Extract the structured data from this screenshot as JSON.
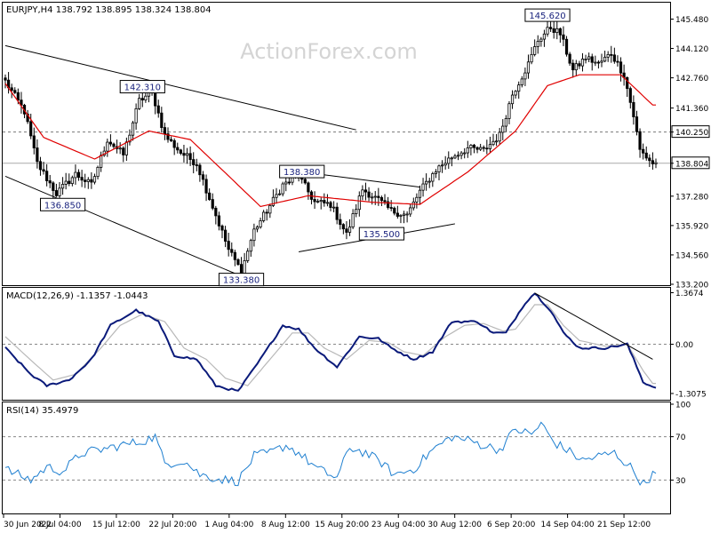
{
  "watermark": "ActionForex.com",
  "colors": {
    "candle": "#000000",
    "ma": "#e00000",
    "macd": "#0a1a7a",
    "macd_signal": "#b8b8b8",
    "rsi": "#1e7fd0",
    "trendline": "#000000",
    "label_box": "#000000",
    "label_text": "#1a237e",
    "grid": "#999999",
    "watermark": "#d4d4d4"
  },
  "chart_data": [
    {
      "type": "candlestick",
      "header": "EURJPY,H4  138.792 138.895 138.324 138.804",
      "ylim": [
        133.2,
        146.2
      ],
      "y_ticks": [
        "145.480",
        "144.120",
        "142.760",
        "141.360",
        "140.250",
        "138.804",
        "137.280",
        "135.920",
        "134.560",
        "133.200"
      ],
      "current_price": "138.804",
      "horizontal_level": "140.250",
      "x_ticks": [
        "30 Jun 2022",
        "8 Jul 04:00",
        "15 Jul 12:00",
        "22 Jul 20:00",
        "1 Aug 04:00",
        "8 Aug 12:00",
        "15 Aug 20:00",
        "23 Aug 04:00",
        "30 Aug 12:00",
        "6 Sep 20:00",
        "14 Sep 04:00",
        "21 Sep 12:00"
      ],
      "annotations": [
        {
          "text": "142.310",
          "bar": 43,
          "value": 142.31
        },
        {
          "text": "136.850",
          "bar": 18,
          "value": 136.85
        },
        {
          "text": "133.380",
          "bar": 74,
          "value": 133.38
        },
        {
          "text": "138.380",
          "bar": 93,
          "value": 138.38
        },
        {
          "text": "135.500",
          "bar": 118,
          "value": 135.5
        },
        {
          "text": "145.620",
          "bar": 170,
          "value": 145.62
        }
      ],
      "anchors": [
        [
          0,
          142.6
        ],
        [
          6,
          141.2
        ],
        [
          10,
          138.8
        ],
        [
          16,
          137.4
        ],
        [
          22,
          138.3
        ],
        [
          27,
          137.8
        ],
        [
          32,
          139.9
        ],
        [
          37,
          139.2
        ],
        [
          42,
          141.7
        ],
        [
          46,
          142.1
        ],
        [
          50,
          140.1
        ],
        [
          55,
          139.3
        ],
        [
          60,
          138.8
        ],
        [
          65,
          136.8
        ],
        [
          70,
          134.8
        ],
        [
          74,
          133.8
        ],
        [
          78,
          135.7
        ],
        [
          82,
          136.6
        ],
        [
          87,
          137.8
        ],
        [
          92,
          138.2
        ],
        [
          97,
          137.0
        ],
        [
          102,
          136.9
        ],
        [
          107,
          135.5
        ],
        [
          112,
          137.6
        ],
        [
          117,
          137.1
        ],
        [
          121,
          136.6
        ],
        [
          126,
          136.4
        ],
        [
          130,
          137.5
        ],
        [
          135,
          138.5
        ],
        [
          140,
          139.1
        ],
        [
          145,
          139.5
        ],
        [
          150,
          139.4
        ],
        [
          155,
          140.1
        ],
        [
          159,
          142.0
        ],
        [
          164,
          143.4
        ],
        [
          167,
          144.5
        ],
        [
          171,
          145.1
        ],
        [
          174,
          144.8
        ],
        [
          178,
          143.1
        ],
        [
          182,
          143.7
        ],
        [
          186,
          143.4
        ],
        [
          190,
          143.9
        ],
        [
          194,
          142.9
        ],
        [
          197,
          141.0
        ],
        [
          199,
          139.4
        ],
        [
          203,
          138.8
        ]
      ],
      "ma_anchors": [
        [
          0,
          142.5
        ],
        [
          12,
          140.0
        ],
        [
          28,
          139.0
        ],
        [
          45,
          140.3
        ],
        [
          58,
          139.9
        ],
        [
          68,
          138.5
        ],
        [
          80,
          136.8
        ],
        [
          95,
          137.3
        ],
        [
          115,
          137.0
        ],
        [
          130,
          136.9
        ],
        [
          145,
          138.4
        ],
        [
          160,
          140.3
        ],
        [
          170,
          142.4
        ],
        [
          180,
          142.9
        ],
        [
          193,
          142.9
        ],
        [
          203,
          141.5
        ]
      ],
      "trendlines": [
        {
          "from": [
            0,
            144.25
          ],
          "to": [
            110,
            140.35
          ]
        },
        {
          "from": [
            0,
            138.2
          ],
          "to": [
            80,
            133.2
          ]
        },
        {
          "from": [
            93,
            138.4
          ],
          "to": [
            130,
            137.7
          ]
        },
        {
          "from": [
            92,
            134.7
          ],
          "to": [
            141,
            136.0
          ]
        }
      ]
    },
    {
      "type": "line",
      "header": "MACD(12,26,9) -1.1357 -1.0443",
      "ylim": [
        -1.45,
        1.45
      ],
      "y_ticks": [
        "1.3674",
        "0.00",
        "-1.3075"
      ],
      "zero_line": 0,
      "anchors": [
        [
          0,
          -0.1
        ],
        [
          8,
          -0.8
        ],
        [
          13,
          -1.1
        ],
        [
          20,
          -0.95
        ],
        [
          27,
          -0.4
        ],
        [
          33,
          0.5
        ],
        [
          41,
          0.9
        ],
        [
          48,
          0.6
        ],
        [
          53,
          -0.3
        ],
        [
          60,
          -0.4
        ],
        [
          66,
          -1.1
        ],
        [
          73,
          -1.25
        ],
        [
          80,
          -0.4
        ],
        [
          87,
          0.5
        ],
        [
          92,
          0.4
        ],
        [
          97,
          -0.1
        ],
        [
          104,
          -0.6
        ],
        [
          111,
          0.2
        ],
        [
          117,
          0.15
        ],
        [
          121,
          -0.1
        ],
        [
          128,
          -0.4
        ],
        [
          134,
          -0.2
        ],
        [
          140,
          0.6
        ],
        [
          148,
          0.6
        ],
        [
          153,
          0.3
        ],
        [
          157,
          0.3
        ],
        [
          163,
          1.1
        ],
        [
          166,
          1.36
        ],
        [
          171,
          0.9
        ],
        [
          175,
          0.3
        ],
        [
          180,
          -0.1
        ],
        [
          188,
          -0.1
        ],
        [
          195,
          0.0
        ],
        [
          200,
          -1.0
        ],
        [
          203,
          -1.13
        ]
      ],
      "signal_anchors": [
        [
          0,
          0.2
        ],
        [
          9,
          -0.5
        ],
        [
          15,
          -0.95
        ],
        [
          22,
          -0.8
        ],
        [
          30,
          -0.1
        ],
        [
          36,
          0.5
        ],
        [
          43,
          0.8
        ],
        [
          50,
          0.6
        ],
        [
          56,
          -0.1
        ],
        [
          63,
          -0.4
        ],
        [
          69,
          -0.9
        ],
        [
          76,
          -1.1
        ],
        [
          83,
          -0.4
        ],
        [
          90,
          0.3
        ],
        [
          95,
          0.3
        ],
        [
          100,
          -0.1
        ],
        [
          107,
          -0.4
        ],
        [
          114,
          0.1
        ],
        [
          120,
          0.05
        ],
        [
          125,
          -0.2
        ],
        [
          131,
          -0.3
        ],
        [
          138,
          0.2
        ],
        [
          144,
          0.5
        ],
        [
          150,
          0.55
        ],
        [
          156,
          0.35
        ],
        [
          160,
          0.4
        ],
        [
          166,
          1.05
        ],
        [
          170,
          1.05
        ],
        [
          175,
          0.5
        ],
        [
          180,
          0.1
        ],
        [
          188,
          -0.05
        ],
        [
          195,
          0.0
        ],
        [
          200,
          -0.7
        ],
        [
          203,
          -1.04
        ]
      ],
      "trendlines": [
        {
          "from": [
            166,
            1.36
          ],
          "to": [
            203,
            -0.4
          ]
        }
      ]
    },
    {
      "type": "line",
      "header": "RSI(14) 35.4979",
      "ylim": [
        0,
        100
      ],
      "y_ticks": [
        "100",
        "70",
        "30",
        "0"
      ],
      "levels": [
        70,
        30
      ],
      "anchors": [
        [
          0,
          40
        ],
        [
          8,
          30
        ],
        [
          13,
          42
        ],
        [
          18,
          38
        ],
        [
          24,
          55
        ],
        [
          30,
          58
        ],
        [
          36,
          62
        ],
        [
          42,
          65
        ],
        [
          47,
          70
        ],
        [
          50,
          45
        ],
        [
          56,
          48
        ],
        [
          61,
          35
        ],
        [
          67,
          31
        ],
        [
          73,
          29
        ],
        [
          78,
          52
        ],
        [
          83,
          55
        ],
        [
          88,
          62
        ],
        [
          92,
          55
        ],
        [
          98,
          40
        ],
        [
          104,
          32
        ],
        [
          108,
          60
        ],
        [
          113,
          55
        ],
        [
          118,
          46
        ],
        [
          122,
          35
        ],
        [
          128,
          40
        ],
        [
          134,
          58
        ],
        [
          140,
          70
        ],
        [
          146,
          66
        ],
        [
          150,
          62
        ],
        [
          155,
          58
        ],
        [
          160,
          77
        ],
        [
          165,
          72
        ],
        [
          168,
          82
        ],
        [
          172,
          65
        ],
        [
          176,
          58
        ],
        [
          181,
          48
        ],
        [
          186,
          52
        ],
        [
          191,
          55
        ],
        [
          196,
          42
        ],
        [
          200,
          26
        ],
        [
          203,
          35
        ]
      ]
    }
  ]
}
